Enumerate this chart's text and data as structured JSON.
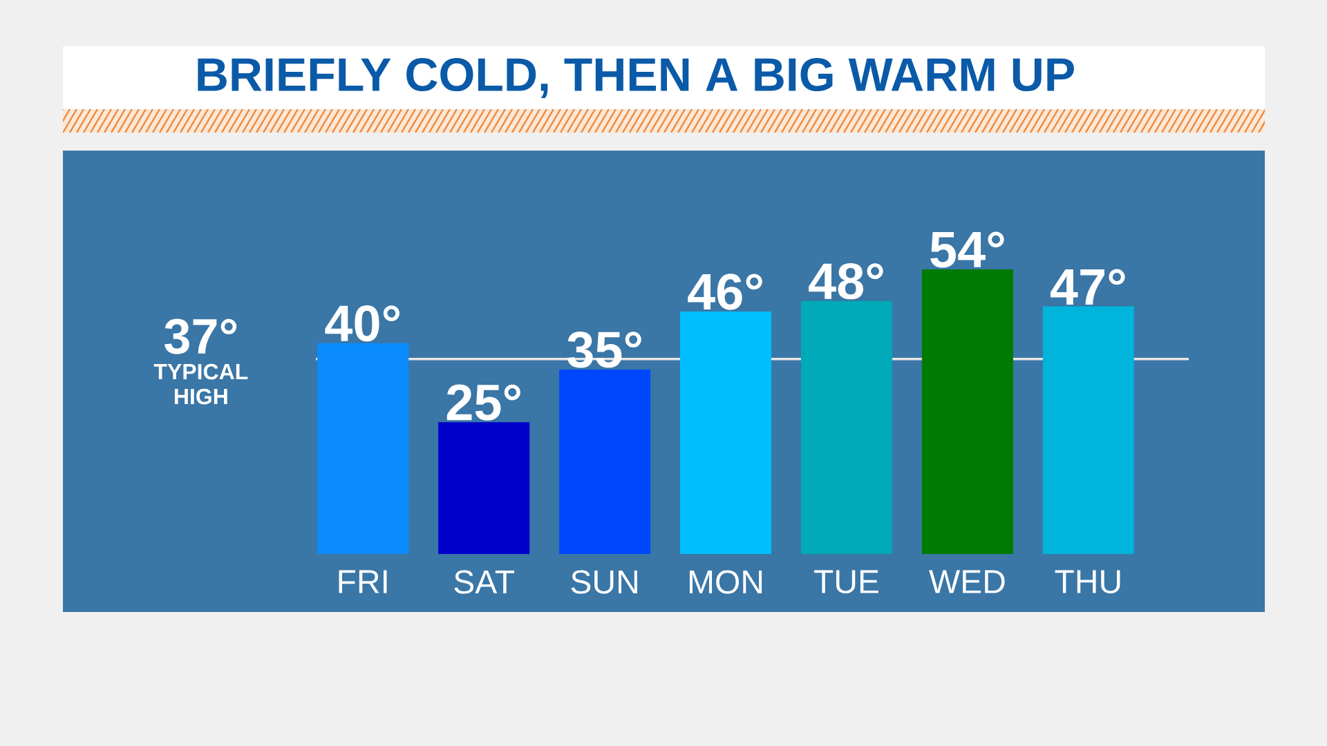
{
  "chart_data": {
    "type": "bar",
    "title": "BRIEFLY COLD, THEN A BIG WARM UP",
    "categories": [
      "FRI",
      "SAT",
      "SUN",
      "MON",
      "TUE",
      "WED",
      "THU"
    ],
    "values": [
      40,
      25,
      35,
      46,
      48,
      54,
      47
    ],
    "colors": [
      "#0a8cff",
      "#0000cc",
      "#0047ff",
      "#00bfff",
      "#00aab8",
      "#007a00",
      "#00b4dc"
    ],
    "value_labels": [
      "40°",
      "25°",
      "35°",
      "46°",
      "48°",
      "54°",
      "47°"
    ],
    "tick_labels": "x",
    "ref_lines": [
      {
        "axis": "y",
        "value": 37,
        "label": "37°",
        "color": "#e6e6e6"
      }
    ],
    "annotations": [
      "TYPICAL HIGH"
    ]
  }
}
